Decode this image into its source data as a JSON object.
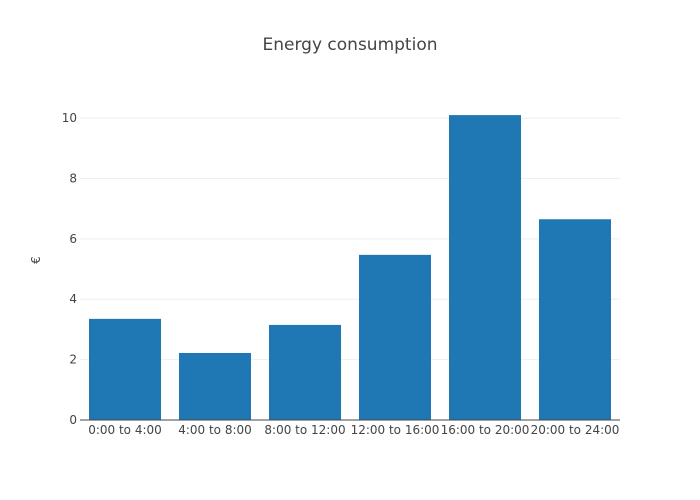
{
  "chart_data": {
    "type": "bar",
    "title": "Energy consumption",
    "xlabel": "",
    "ylabel": "€",
    "categories": [
      "0:00 to 4:00",
      "4:00 to 8:00",
      "8:00 to 12:00",
      "12:00 to 16:00",
      "16:00 to 20:00",
      "20:00 to 24:00"
    ],
    "values": [
      3.35,
      2.22,
      3.15,
      5.47,
      10.1,
      6.65
    ],
    "ylim": [
      0,
      10.6
    ],
    "yticks": [
      0,
      2,
      4,
      6,
      8,
      10
    ],
    "grid": true,
    "colors": {
      "bar": "#1f77b4",
      "grid": "#eeeeee",
      "axis": "#444444",
      "text": "#444444"
    }
  }
}
